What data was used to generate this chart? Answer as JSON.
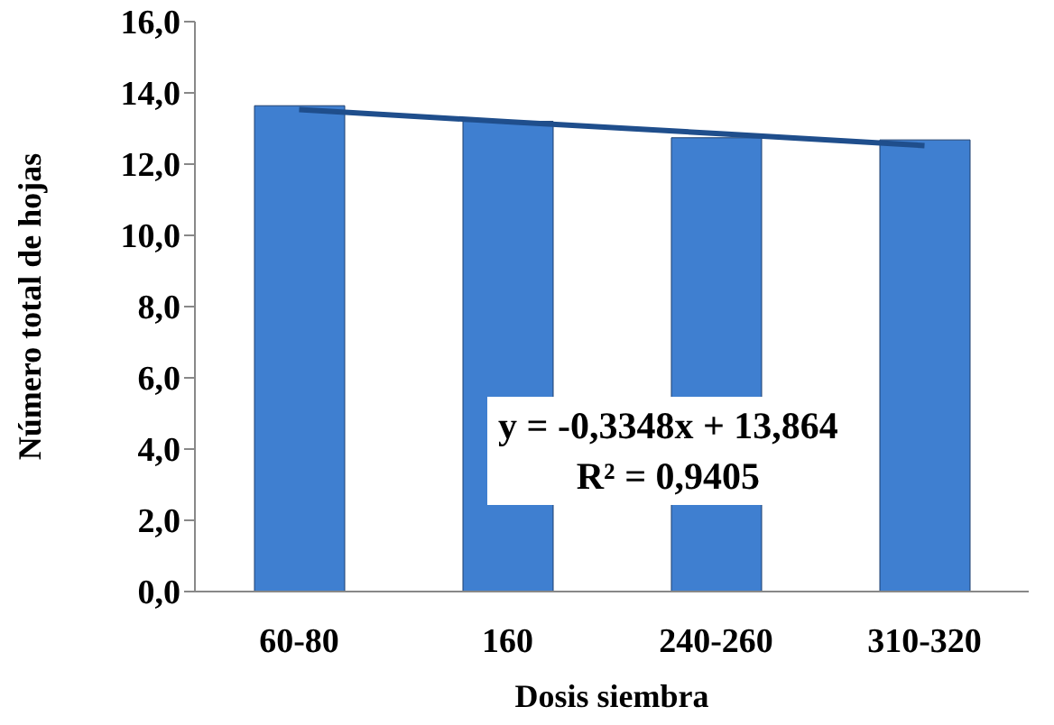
{
  "chart_data": {
    "type": "bar",
    "xlabel": "Dosis siembra",
    "ylabel": "Número total de hojas",
    "categories": [
      "60-80",
      "160",
      "240-260",
      "310-320"
    ],
    "series": [
      {
        "color": "#3f7fd0",
        "values": [
          13.64,
          13.2,
          12.74,
          12.68
        ]
      },
      {
        "type": "line",
        "color": "#1f4e8c",
        "x": [
          "60-80",
          "160",
          "240-260",
          "310-320"
        ],
        "values": [
          13.53,
          13.19,
          12.86,
          12.52
        ],
        "marker": "none"
      }
    ],
    "ylim": [
      0,
      16
    ],
    "yticks": [
      {
        "value": 0,
        "label": "0,0"
      },
      {
        "value": 2,
        "label": "2,0"
      },
      {
        "value": 4,
        "label": "4,0"
      },
      {
        "value": 6,
        "label": "6,0"
      },
      {
        "value": 8,
        "label": "8,0"
      },
      {
        "value": 10,
        "label": "10,0"
      },
      {
        "value": 12,
        "label": "12,0"
      },
      {
        "value": 14,
        "label": "14,0"
      },
      {
        "value": 16,
        "label": "16,0"
      }
    ],
    "annotations": [
      "y = -0,3348x + 13,864",
      "R² = 0,9405"
    ],
    "grid": false,
    "legend": false
  }
}
